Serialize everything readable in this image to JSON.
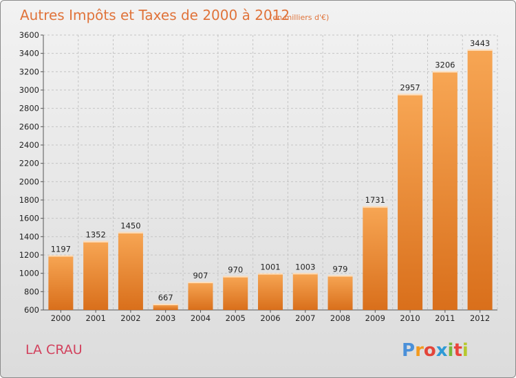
{
  "chart_data": {
    "type": "bar",
    "title": "Autres Impôts et Taxes de 2000 à 2012",
    "subtitle": "(en milliers d'€)",
    "categories": [
      "2000",
      "2001",
      "2002",
      "2003",
      "2004",
      "2005",
      "2006",
      "2007",
      "2008",
      "2009",
      "2010",
      "2011",
      "2012"
    ],
    "values": [
      1197,
      1352,
      1450,
      667,
      907,
      970,
      1001,
      1003,
      979,
      1731,
      2957,
      3206,
      3443
    ],
    "ylim": [
      600,
      3600
    ],
    "yticks": [
      600,
      800,
      1000,
      1200,
      1400,
      1600,
      1800,
      2000,
      2200,
      2400,
      2600,
      2800,
      3000,
      3200,
      3400,
      3600
    ],
    "grid": true,
    "colors": {
      "bar_light": "#f7a654",
      "bar_dark": "#d96f1b",
      "bar_top": "#fde0bf"
    }
  },
  "location": "LA CRAU",
  "brand": {
    "letters": [
      "P",
      "r",
      "o",
      "x",
      "i",
      "t",
      "i"
    ],
    "colors": [
      "#4a90d9",
      "#f39a1e",
      "#e3453a",
      "#2e9ad6",
      "#79b83a",
      "#e9453d",
      "#b6c82e"
    ]
  }
}
